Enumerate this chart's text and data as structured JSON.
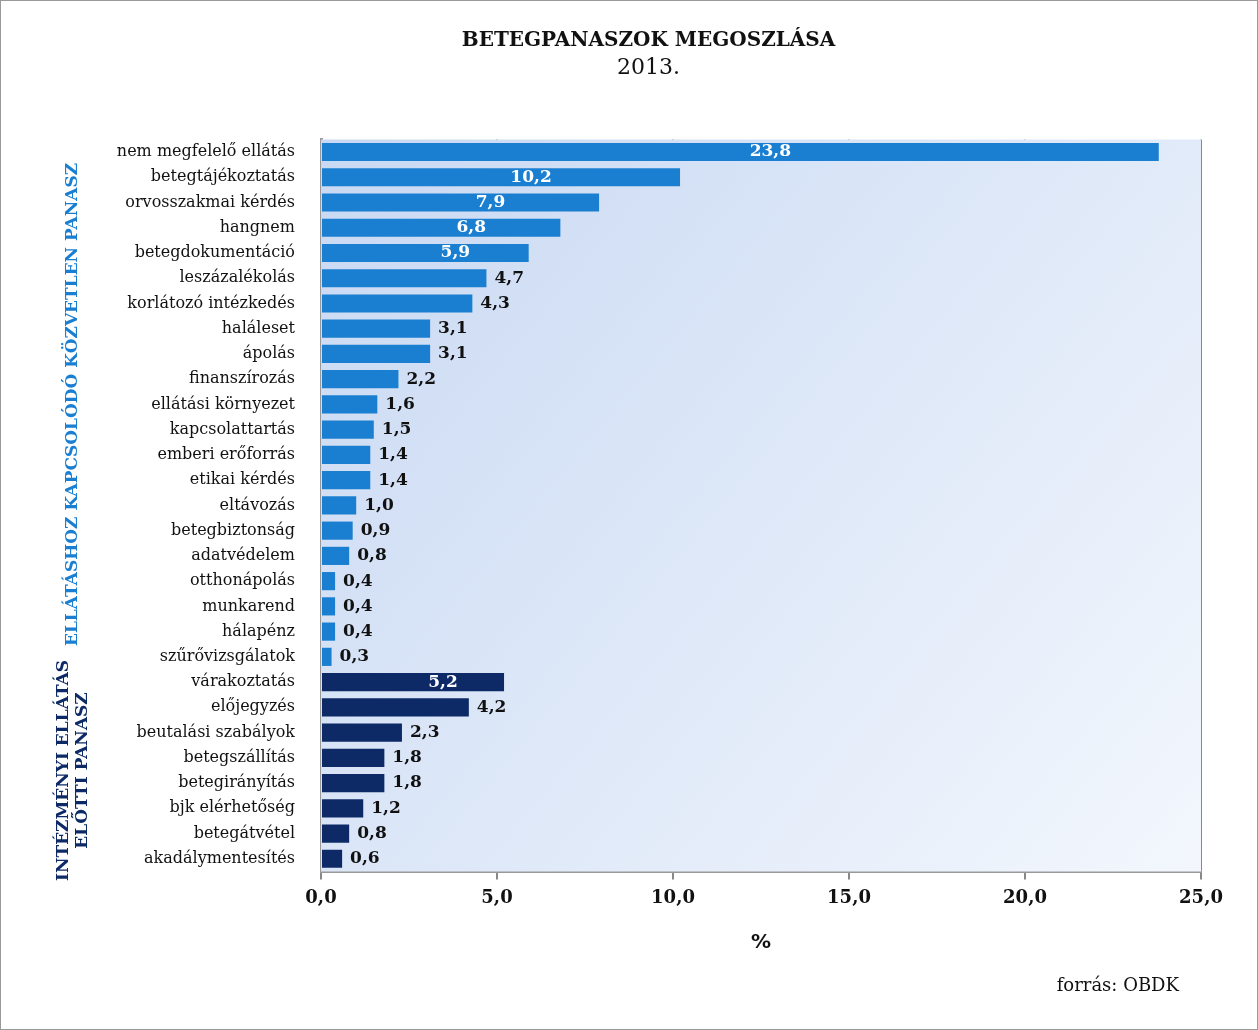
{
  "chart_data": {
    "type": "bar",
    "orientation": "horizontal",
    "title": "BETEGPANASZOK MEGOSZLÁSA",
    "subtitle": "2013.",
    "xlabel": "%",
    "categories": [
      "nem megfelelő ellátás",
      "betegtájékoztatás",
      "orvosszakmai kérdés",
      "hangnem",
      "betegdokumentáció",
      "leszázalékolás",
      "korlátozó intézkedés",
      "haláleset",
      "ápolás",
      "finanszírozás",
      "ellátási környezet",
      "kapcsolattartás",
      "emberi erőforrás",
      "etikai kérdés",
      "eltávozás",
      "betegbiztonság",
      "adatvédelem",
      "otthonápolás",
      "munkarend",
      "hálapénz",
      "szűrővizsgálatok",
      "várakoztatás",
      "előjegyzés",
      "beutalási szabályok",
      "betegszállítás",
      "betegirányítás",
      "bjk elérhetőség",
      "betegátvétel",
      "akadálymentesítés"
    ],
    "values": [
      23.8,
      10.2,
      7.9,
      6.8,
      5.9,
      4.7,
      4.3,
      3.1,
      3.1,
      2.2,
      1.6,
      1.5,
      1.4,
      1.4,
      1.0,
      0.9,
      0.8,
      0.4,
      0.4,
      0.4,
      0.3,
      5.2,
      4.2,
      2.3,
      1.8,
      1.8,
      1.2,
      0.8,
      0.6
    ],
    "value_labels": [
      "23,8",
      "10,2",
      "7,9",
      "6,8",
      "5,9",
      "4,7",
      "4,3",
      "3,1",
      "3,1",
      "2,2",
      "1,6",
      "1,5",
      "1,4",
      "1,4",
      "1,0",
      "0,9",
      "0,8",
      "0,4",
      "0,4",
      "0,4",
      "0,3",
      "5,2",
      "4,2",
      "2,3",
      "1,8",
      "1,8",
      "1,2",
      "0,8",
      "0,6"
    ],
    "colors": [
      "#1a7fd0",
      "#1a7fd0",
      "#1a7fd0",
      "#1a7fd0",
      "#1a7fd0",
      "#1a7fd0",
      "#1a7fd0",
      "#1a7fd0",
      "#1a7fd0",
      "#1a7fd0",
      "#1a7fd0",
      "#1a7fd0",
      "#1a7fd0",
      "#1a7fd0",
      "#1a7fd0",
      "#1a7fd0",
      "#1a7fd0",
      "#1a7fd0",
      "#1a7fd0",
      "#1a7fd0",
      "#1a7fd0",
      "#0d2a66",
      "#0d2a66",
      "#0d2a66",
      "#0d2a66",
      "#0d2a66",
      "#0d2a66",
      "#0d2a66",
      "#0d2a66"
    ],
    "xlim": [
      0,
      25
    ],
    "xticks": [
      {
        "value": 0,
        "label": "0,0"
      },
      {
        "value": 5,
        "label": "5,0"
      },
      {
        "value": 10,
        "label": "10,0"
      },
      {
        "value": 15,
        "label": "15,0"
      },
      {
        "value": 20,
        "label": "20,0"
      },
      {
        "value": 25,
        "label": "25,0"
      }
    ],
    "grid": "x",
    "legend": false,
    "annotations": [
      "ELLÁTÁSHOZ KAPCSOLÓDÓ KÖZVETLEN PANASZ",
      "INTÉZMÉNYI ELLÁTÁS\nELŐTTI PANASZ",
      "forrás: OBDK"
    ]
  }
}
